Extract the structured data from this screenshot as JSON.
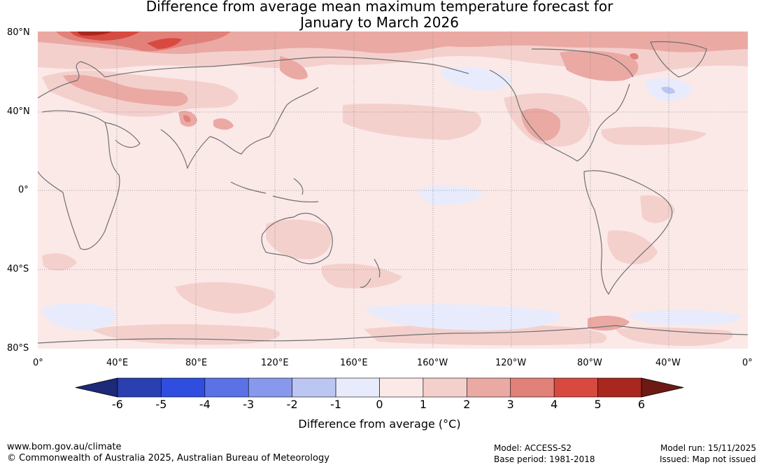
{
  "title": {
    "line1": "Difference from average mean maximum temperature forecast for",
    "line2": "January to March 2026"
  },
  "map": {
    "latitude_labels": [
      "80°N",
      "40°N",
      "0°",
      "40°S",
      "80°S"
    ],
    "longitude_labels": [
      "0°",
      "40°E",
      "80°E",
      "120°E",
      "160°E",
      "160°W",
      "120°W",
      "80°W",
      "40°W",
      "0°"
    ]
  },
  "colorbar": {
    "ticks": [
      "-6",
      "-5",
      "-4",
      "-3",
      "-2",
      "-1",
      "0",
      "1",
      "2",
      "3",
      "4",
      "5",
      "6"
    ],
    "label": "Difference from average (°C)",
    "colors": {
      "below_min": "#1c2a78",
      "bins": [
        "#2a3fb0",
        "#2f4ee0",
        "#5a72e6",
        "#8898ec",
        "#bcc6f2",
        "#e8ebfb",
        "#fbe9e8",
        "#f4d0cd",
        "#eba9a4",
        "#e2807a",
        "#d84a40",
        "#a8281f"
      ],
      "above_max": "#6e1a14"
    }
  },
  "footer": {
    "website": "www.bom.gov.au/climate",
    "copyright": "© Commonwealth of Australia 2025, Australian Bureau of Meteorology",
    "model": "Model: ACCESS-S2",
    "base_period": "Base period: 1981-2018",
    "model_run": "Model run: 15/11/2025",
    "issued": "Issued: Map not issued"
  }
}
